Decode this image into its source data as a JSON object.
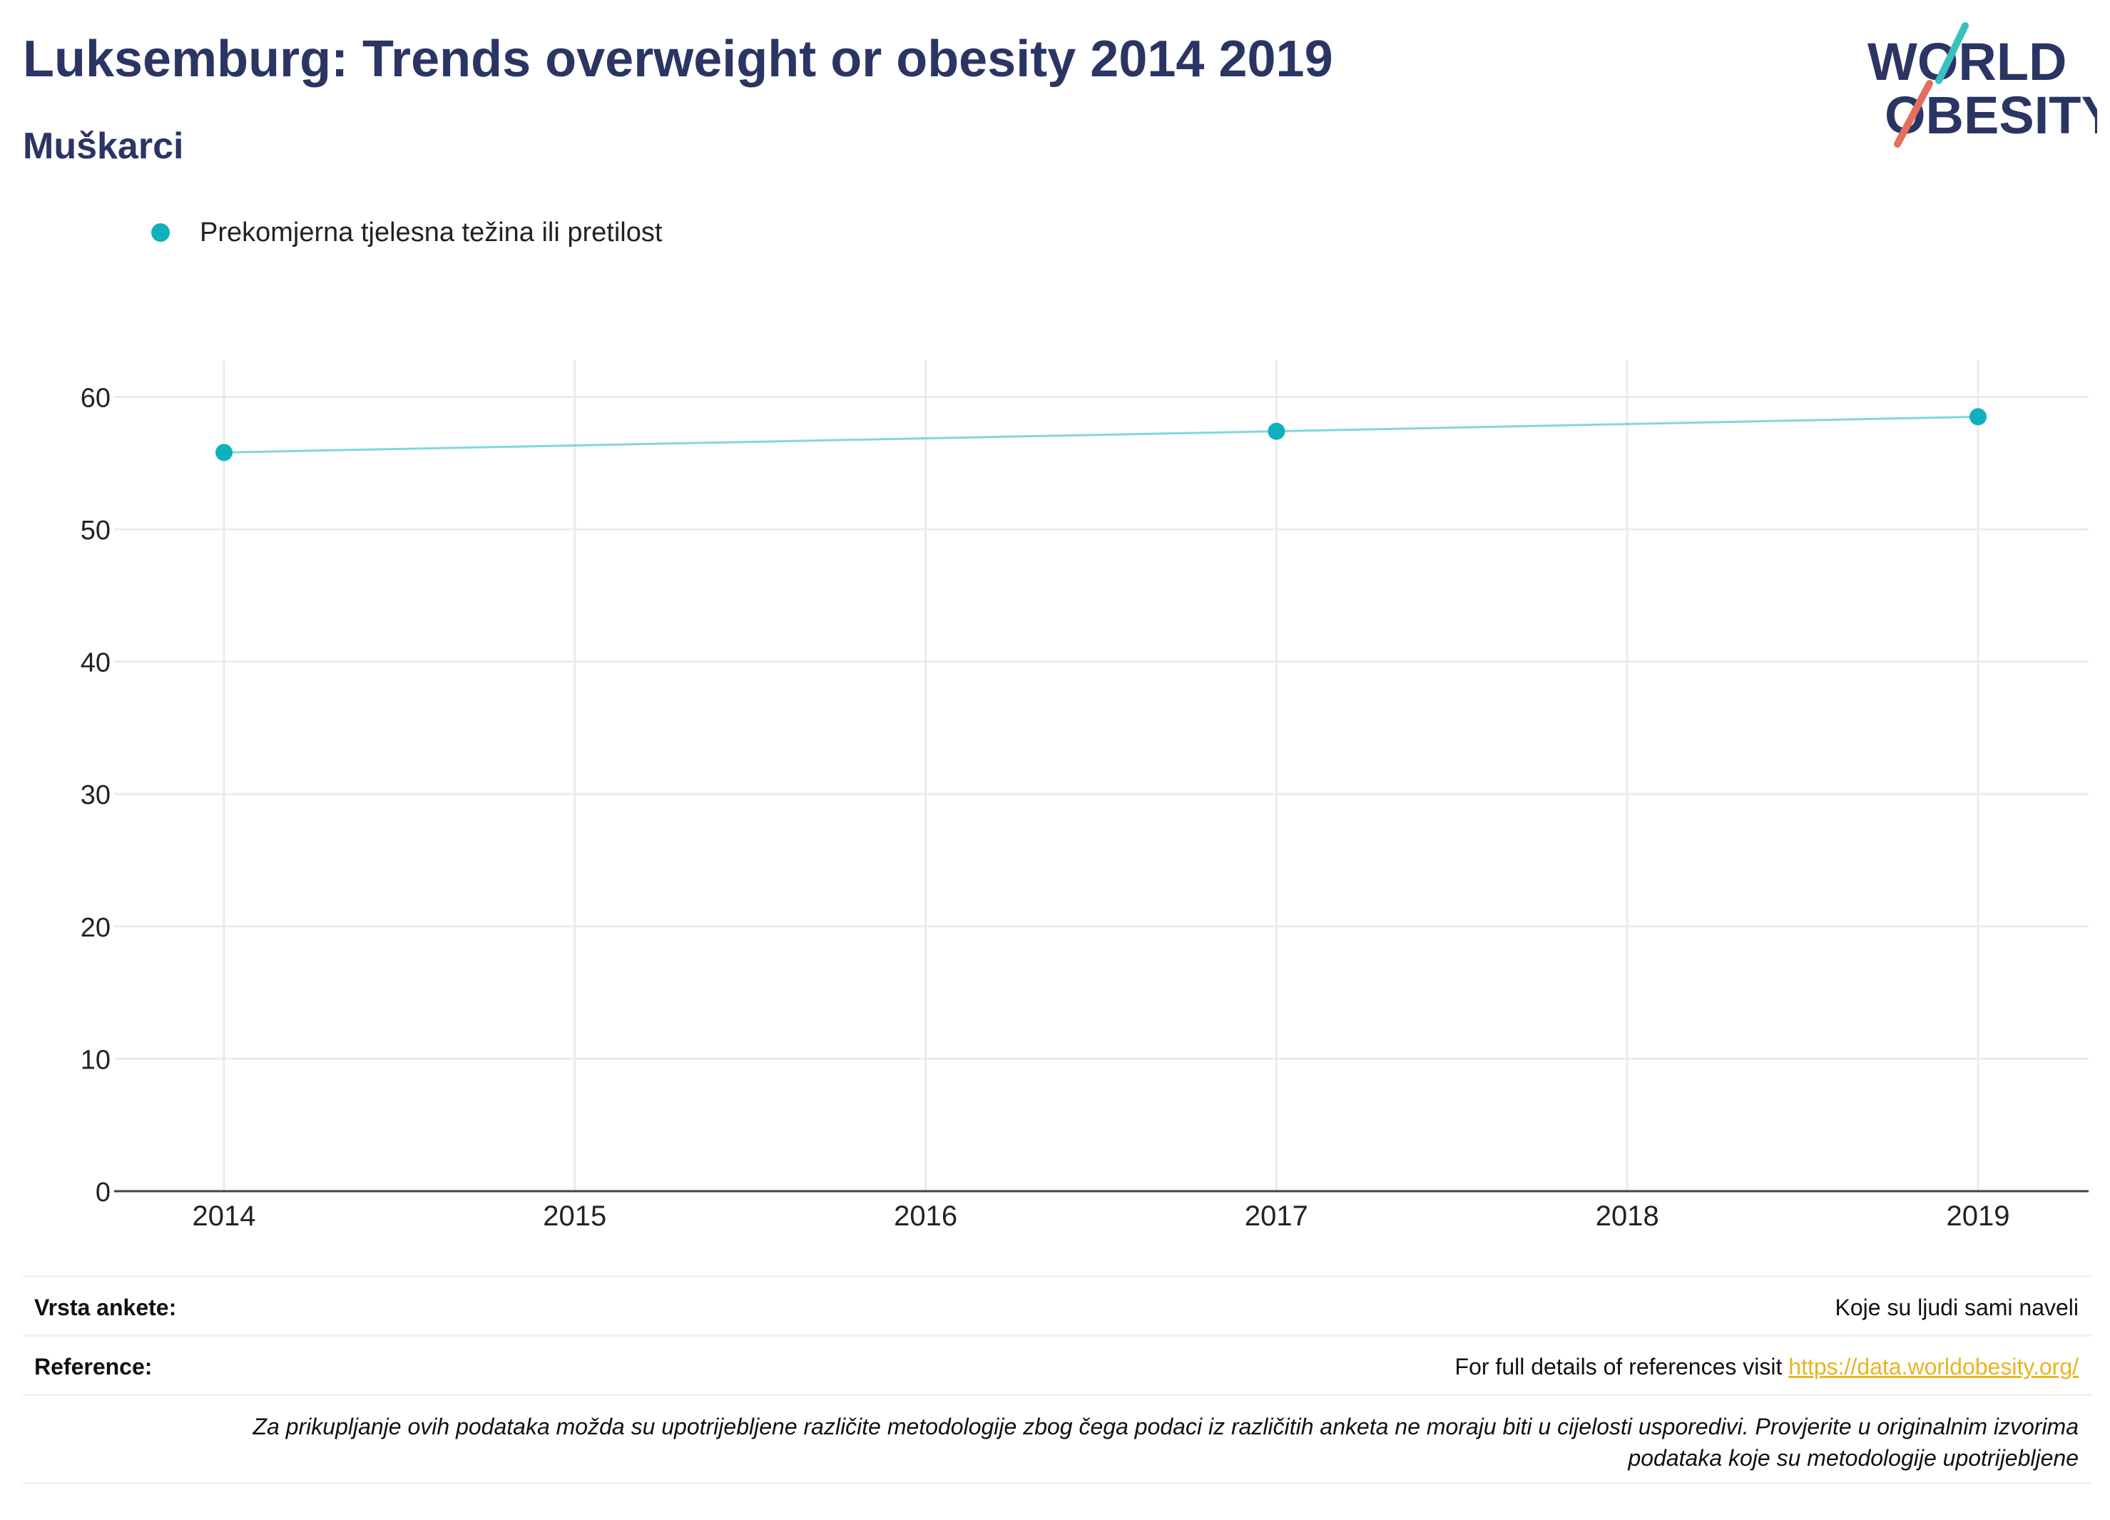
{
  "header": {
    "title": "Luksemburg: Trends overweight or obesity 2014 2019",
    "subtitle": "Muškarci"
  },
  "logo": {
    "line1": "WORLD",
    "line2": "OBESITY",
    "colors": {
      "text": "#2b3564",
      "teal_slash": "#3cbfbf",
      "red_slash": "#e36f5e"
    }
  },
  "legend": {
    "label": "Prekomjerna tjelesna težina ili pretilost",
    "color": "#0fb1bc"
  },
  "chart_data": {
    "type": "line",
    "x_ticks": [
      "2014",
      "2015",
      "2016",
      "2017",
      "2018",
      "2019"
    ],
    "xlim": [
      2014,
      2019
    ],
    "y_ticks": [
      "0",
      "10",
      "20",
      "30",
      "40",
      "50",
      "60"
    ],
    "ylim": [
      0,
      62.5
    ],
    "grid": true,
    "legend_position": "top-left",
    "series": [
      {
        "name": "Prekomjerna tjelesna težina ili pretilost",
        "color": "#0fb1bc",
        "line_color": "#7fd8dc",
        "x": [
          2014,
          2017,
          2019
        ],
        "y": [
          55.8,
          57.4,
          58.5
        ]
      }
    ]
  },
  "footer": {
    "survey_label": "Vrsta ankete:",
    "survey_value": "Koje su ljudi sami naveli",
    "reference_label": "Reference:",
    "reference_text": "For full details of references visit ",
    "reference_link": "https://data.worldobesity.org/",
    "note_line1": "Za prikupljanje ovih podataka možda su upotrijebljene različite metodologije zbog čega podaci iz različitih anketa ne moraju biti u cijelosti usporedivi. Provjerite u originalnim izvorima",
    "note_line2": "podataka koje su metodologije upotrijebljene"
  }
}
